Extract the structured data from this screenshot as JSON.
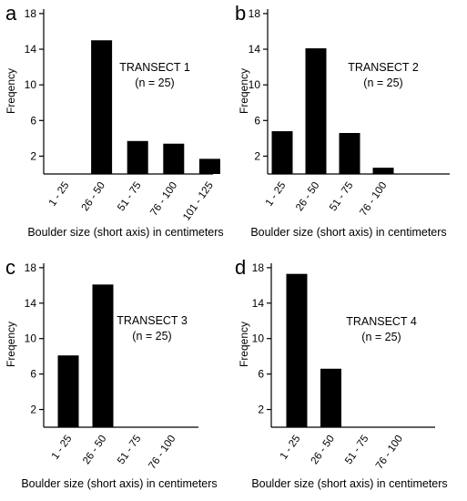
{
  "chart_data": [
    {
      "type": "bar",
      "panel": "a",
      "annotation": [
        "TRANSECT 1",
        "(n = 25)"
      ],
      "categories": [
        "1 - 25",
        "26 - 50",
        "51 - 75",
        "76 - 100",
        "101 - 125"
      ],
      "values": [
        0,
        15,
        3.7,
        3.4,
        1.7
      ],
      "ylabel": "Freqency",
      "xlabel": "Boulder size (short axis) in centimeters",
      "yticks": [
        2,
        6,
        10,
        14,
        18
      ],
      "ylim": [
        0,
        18.5
      ]
    },
    {
      "type": "bar",
      "panel": "b",
      "annotation": [
        "TRANSECT 2",
        "(n = 25)"
      ],
      "categories": [
        "1 - 25",
        "26 - 50",
        "51 - 75",
        "76 - 100"
      ],
      "values": [
        4.8,
        14.1,
        4.6,
        0.7
      ],
      "ylabel": "Freqency",
      "xlabel": "Boulder size (short axis) in centimeters",
      "yticks": [
        2,
        6,
        10,
        14,
        18
      ],
      "ylim": [
        0,
        18.5
      ]
    },
    {
      "type": "bar",
      "panel": "c",
      "annotation": [
        "TRANSECT 3",
        "(n = 25)"
      ],
      "categories": [
        "1 - 25",
        "26 - 50",
        "51 - 75",
        "76 - 100"
      ],
      "values": [
        8.1,
        16.1,
        0,
        0
      ],
      "ylabel": "Freqency",
      "xlabel": "Boulder size (short axis) in centimeters",
      "yticks": [
        2,
        6,
        10,
        14,
        18
      ],
      "ylim": [
        0,
        18.5
      ]
    },
    {
      "type": "bar",
      "panel": "d",
      "annotation": [
        "TRANSECT 4",
        "(n = 25)"
      ],
      "categories": [
        "1 - 25",
        "26 - 50",
        "51 - 75",
        "76 - 100"
      ],
      "values": [
        17.3,
        6.6,
        0,
        0
      ],
      "ylabel": "Freqency",
      "xlabel": "Boulder size (short axis) in centimeters",
      "yticks": [
        2,
        6,
        10,
        14,
        18
      ],
      "ylim": [
        0,
        18.5
      ]
    }
  ]
}
